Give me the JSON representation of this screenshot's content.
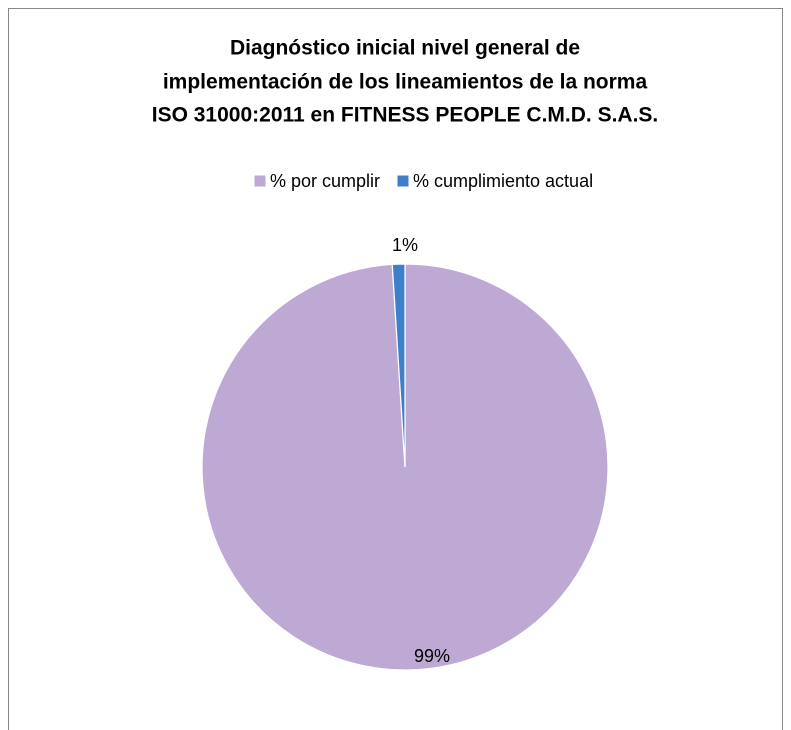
{
  "chart_data": {
    "type": "pie",
    "title": [
      "Diagnóstico inicial nivel general de",
      "implementación de los lineamientos de la norma",
      "ISO 31000:2011 en FITNESS PEOPLE C.M.D. S.A.S."
    ],
    "categories": [
      "% por cumplir",
      "% cumplimiento actual"
    ],
    "values": [
      99,
      1
    ],
    "value_labels": [
      "99%",
      "1%"
    ],
    "colors": [
      "#bda9d4",
      "#3d7fc9"
    ],
    "legend": "top"
  }
}
